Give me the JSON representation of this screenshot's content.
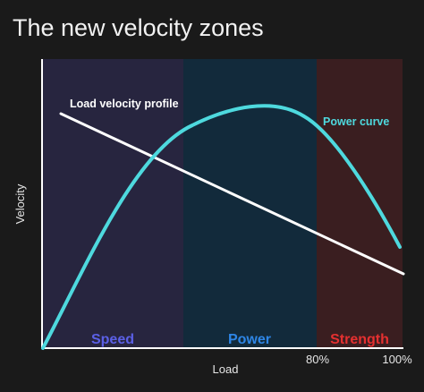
{
  "title": "The new velocity zones",
  "chart_data": {
    "type": "line",
    "xlabel": "Load",
    "ylabel": "Velocity",
    "x_ticks": [
      "80%",
      "100%"
    ],
    "zones": [
      {
        "name": "Speed",
        "color": "#27253f",
        "label_color": "#5b60e6"
      },
      {
        "name": "Power",
        "color": "#122a3b",
        "label_color": "#2e86e6"
      },
      {
        "name": "Strength",
        "color": "#3a1e20",
        "label_color": "#e53030"
      }
    ],
    "annotations": {
      "load_velocity": "Load velocity profile",
      "power_curve": "Power curve"
    },
    "series": [
      {
        "name": "Load velocity profile",
        "color": "#ffffff"
      },
      {
        "name": "Power curve",
        "color": "#4ed9de"
      }
    ],
    "grid": false
  }
}
